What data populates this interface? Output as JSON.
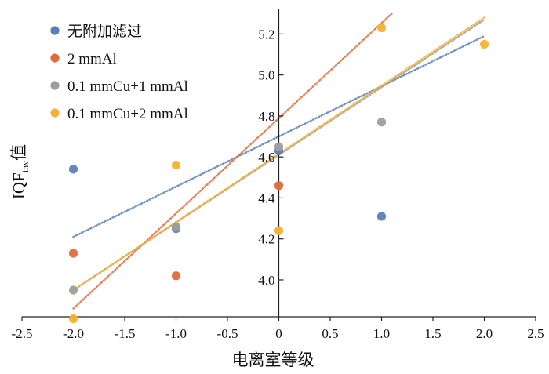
{
  "chart_data": {
    "type": "scatter",
    "xlabel": "电离室等级",
    "ylabel": {
      "main": "IQF",
      "sub": "inv",
      "suffix": "值"
    },
    "xlim": [
      -2.5,
      2.5
    ],
    "ylim": [
      3.82,
      5.32
    ],
    "x_ticks": [
      -2.5,
      -2.0,
      -1.5,
      -1.0,
      -0.5,
      0,
      0.5,
      1.0,
      1.5,
      2.0,
      2.5
    ],
    "x_tick_labels": [
      "-2.5",
      "-2.0",
      "-1.5",
      "-1.0",
      "-0.5",
      "0",
      "0.5",
      "1.0",
      "1.5",
      "2.0",
      "2.5"
    ],
    "y_ticks": [
      4.0,
      4.2,
      4.4,
      4.6,
      4.8,
      5.0,
      5.2
    ],
    "y_tick_labels": [
      "4.0",
      "4.2",
      "4.4",
      "4.6",
      "4.8",
      "5.0",
      "5.2"
    ],
    "legend_position": "top-left",
    "series": [
      {
        "name": "无附加滤过",
        "color": "#5b7fb8",
        "x": [
          -2,
          -1,
          0,
          1
        ],
        "y": [
          4.54,
          4.25,
          4.63,
          4.31
        ],
        "trend": {
          "x": [
            -2.0,
            2.0
          ],
          "y": [
            4.21,
            5.19
          ]
        }
      },
      {
        "name": "2 mmAl",
        "color": "#e06c3a",
        "x": [
          -2,
          -1,
          0
        ],
        "y": [
          4.13,
          4.02,
          4.46
        ],
        "trend": {
          "x": [
            -2.0,
            1.1
          ],
          "y": [
            3.86,
            5.3
          ]
        }
      },
      {
        "name": "0.1 mmCu+1 mmAl",
        "color": "#a09e9b",
        "x": [
          -2,
          -1,
          0,
          1
        ],
        "y": [
          3.95,
          4.26,
          4.65,
          4.77
        ],
        "trend": {
          "x": [
            -2.0,
            2.0
          ],
          "y": [
            3.95,
            5.27
          ]
        }
      },
      {
        "name": "0.1 mmCu+2 mmAl",
        "color": "#f5b133",
        "x": [
          -2,
          -1,
          0,
          1,
          2
        ],
        "y": [
          3.81,
          4.56,
          4.24,
          5.23,
          5.15
        ],
        "trend": {
          "x": [
            -2.0,
            2.0
          ],
          "y": [
            3.95,
            5.28
          ]
        }
      }
    ]
  }
}
